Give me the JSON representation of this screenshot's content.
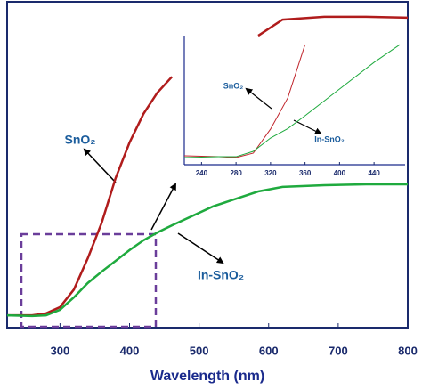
{
  "chart_data": [
    {
      "type": "line",
      "x_label": "Wavelength (nm)",
      "x": [
        224,
        260,
        280,
        300,
        320,
        340,
        360,
        380,
        400,
        420,
        440,
        461,
        520,
        585,
        620,
        680,
        740,
        800
      ],
      "series": [
        {
          "name": "SnO₂",
          "color": "#b01c1c",
          "values": [
            0.038,
            0.038,
            0.044,
            0.063,
            0.117,
            0.213,
            0.322,
            0.459,
            0.568,
            0.656,
            0.721,
            0.77,
            null,
            0.896,
            0.945,
            0.954,
            0.954,
            0.951
          ]
        },
        {
          "name": "In-SnO₂",
          "color": "#1faa3e",
          "values": [
            0.038,
            0.036,
            0.038,
            0.055,
            0.093,
            0.137,
            0.172,
            0.205,
            0.238,
            0.268,
            0.292,
            0.314,
            0.372,
            0.418,
            0.432,
            0.437,
            0.44,
            0.44
          ]
        }
      ],
      "xlim": [
        224,
        800
      ],
      "xticks": [
        300,
        400,
        500,
        600,
        700,
        800
      ],
      "ylim": [
        0,
        1
      ]
    },
    {
      "type": "line",
      "x": [
        220,
        260,
        280,
        300,
        320,
        340,
        360,
        400,
        440,
        470
      ],
      "series": [
        {
          "name": "SnO₂",
          "color": "#c0262d",
          "values": [
            0.071,
            0.064,
            0.057,
            0.093,
            0.286,
            0.536,
            0.964,
            null,
            null,
            null
          ]
        },
        {
          "name": "In-SnO₂",
          "color": "#1faa3e",
          "values": [
            0.057,
            0.064,
            0.064,
            0.107,
            0.214,
            0.29,
            0.393,
            0.607,
            0.821,
            0.964
          ]
        }
      ],
      "xlim": [
        220,
        476
      ],
      "xticks": [
        240,
        280,
        320,
        360,
        400,
        440
      ],
      "ylim": [
        0,
        1
      ]
    }
  ]
}
